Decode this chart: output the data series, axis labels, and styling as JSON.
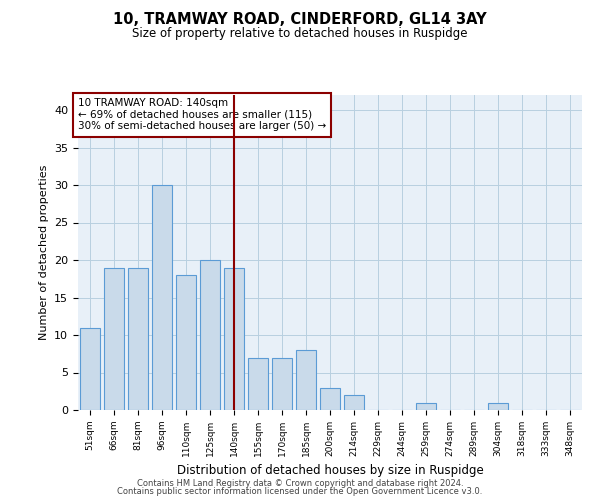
{
  "title": "10, TRAMWAY ROAD, CINDERFORD, GL14 3AY",
  "subtitle": "Size of property relative to detached houses in Ruspidge",
  "xlabel": "Distribution of detached houses by size in Ruspidge",
  "ylabel": "Number of detached properties",
  "bin_labels": [
    "51sqm",
    "66sqm",
    "81sqm",
    "96sqm",
    "110sqm",
    "125sqm",
    "140sqm",
    "155sqm",
    "170sqm",
    "185sqm",
    "200sqm",
    "214sqm",
    "229sqm",
    "244sqm",
    "259sqm",
    "274sqm",
    "289sqm",
    "304sqm",
    "318sqm",
    "333sqm",
    "348sqm"
  ],
  "bar_values": [
    11,
    19,
    19,
    30,
    18,
    20,
    19,
    7,
    7,
    8,
    3,
    2,
    0,
    0,
    1,
    0,
    0,
    1,
    0,
    0,
    0
  ],
  "bar_color": "#c9daea",
  "bar_edge_color": "#5b9bd5",
  "highlight_index": 6,
  "highlight_line_color": "#8b0000",
  "annotation_text": "10 TRAMWAY ROAD: 140sqm\n← 69% of detached houses are smaller (115)\n30% of semi-detached houses are larger (50) →",
  "annotation_box_color": "white",
  "annotation_box_edge_color": "#8b0000",
  "ylim": [
    0,
    42
  ],
  "yticks": [
    0,
    5,
    10,
    15,
    20,
    25,
    30,
    35,
    40
  ],
  "grid_color": "#b8cfe0",
  "background_color": "#e8f0f8",
  "footer_line1": "Contains HM Land Registry data © Crown copyright and database right 2024.",
  "footer_line2": "Contains public sector information licensed under the Open Government Licence v3.0."
}
